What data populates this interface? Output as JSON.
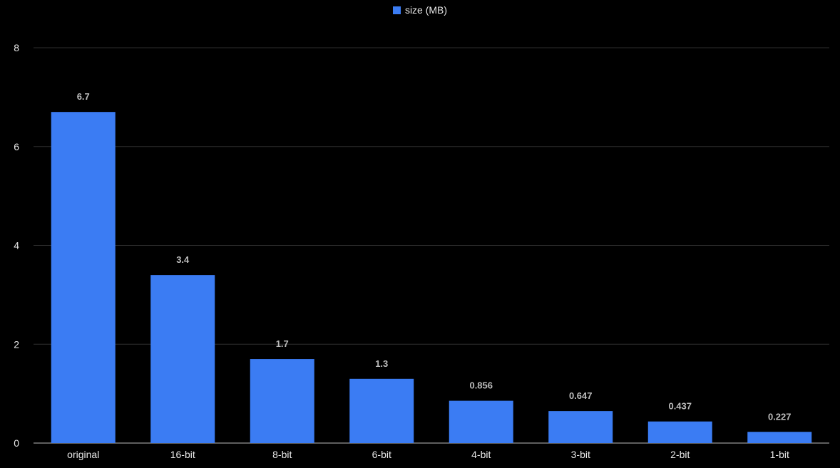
{
  "chart_data": {
    "type": "bar",
    "categories": [
      "original",
      "16-bit",
      "8-bit",
      "6-bit",
      "4-bit",
      "3-bit",
      "2-bit",
      "1-bit"
    ],
    "series": [
      {
        "name": "size (MB)",
        "values": [
          6.7,
          3.4,
          1.7,
          1.3,
          0.856,
          0.647,
          0.437,
          0.227
        ],
        "value_labels": [
          "6.7",
          "3.4",
          "1.7",
          "1.3",
          "0.856",
          "0.647",
          "0.437",
          "0.227"
        ]
      }
    ],
    "ylim": [
      0,
      8
    ],
    "yticks": [
      0,
      2,
      4,
      6,
      8
    ],
    "ytick_labels": [
      "0",
      "2",
      "4",
      "6",
      "8"
    ],
    "grid": true,
    "legend_position": "top-center",
    "colors": {
      "bar": "#3b7cf3",
      "background": "#000000",
      "grid": "#2e2e2e",
      "axis": "#bdbdbd",
      "text": "#e8e8e8",
      "value_label": "#bdbdbd"
    }
  }
}
